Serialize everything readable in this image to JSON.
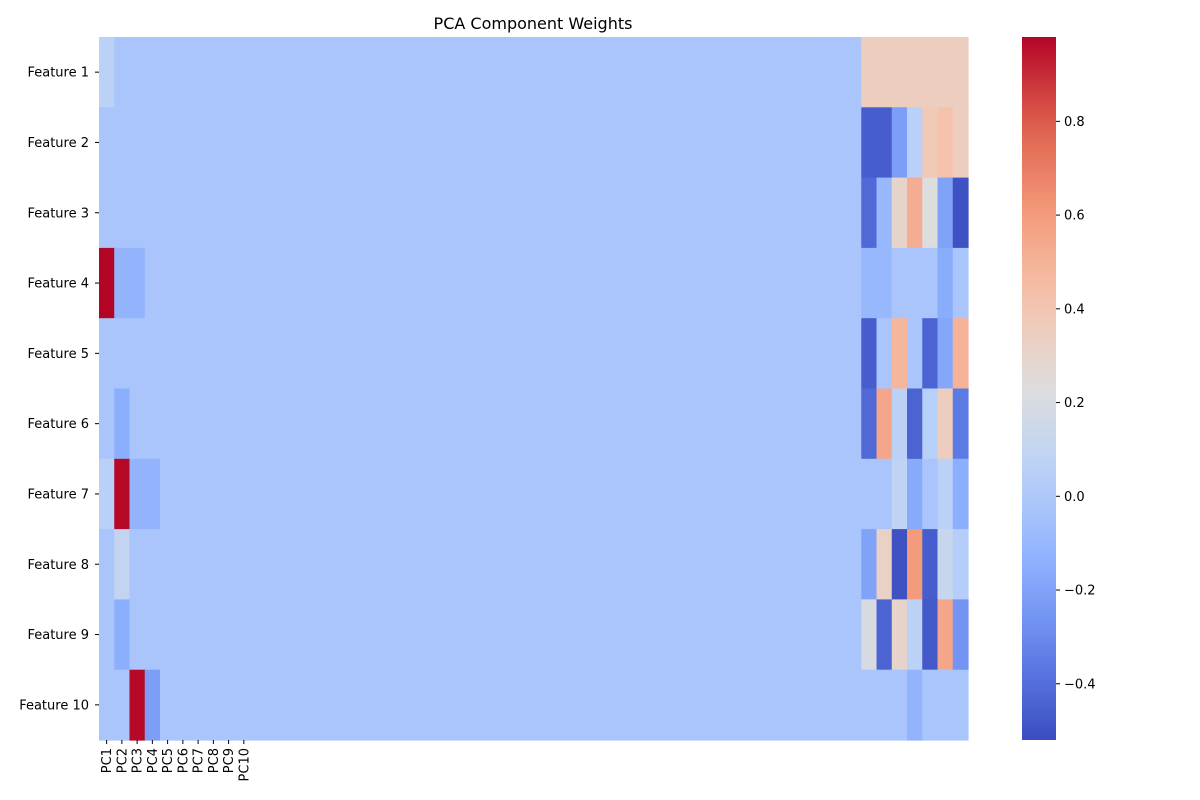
{
  "chart_data": {
    "type": "heatmap",
    "title": "PCA Component Weights",
    "colormap": "coolwarm",
    "rows": [
      "Feature 1",
      "Feature 2",
      "Feature 3",
      "Feature 4",
      "Feature 5",
      "Feature 6",
      "Feature 7",
      "Feature 8",
      "Feature 9",
      "Feature 10"
    ],
    "x_tick_labels": [
      "PC1",
      "PC2",
      "PC3",
      "PC4",
      "PC5",
      "PC6",
      "PC7",
      "PC8",
      "PC9",
      "PC10"
    ],
    "colorbar": {
      "vmin": -0.52,
      "vmax": 0.98,
      "ticks": [
        -0.4,
        -0.2,
        0.0,
        0.2,
        0.4,
        0.6,
        0.8
      ]
    },
    "column_count": 57,
    "background_value": -0.02,
    "cells": [
      {
        "row": 0,
        "cols": [
          0
        ],
        "value": 0.06
      },
      {
        "row": 0,
        "cols": [
          50,
          51,
          52,
          53,
          54,
          55,
          56
        ],
        "value": 0.35
      },
      {
        "row": 1,
        "cols": [
          50,
          51
        ],
        "value": -0.46
      },
      {
        "row": 1,
        "cols": [
          52
        ],
        "value": -0.22
      },
      {
        "row": 1,
        "cols": [
          53
        ],
        "value": 0.05
      },
      {
        "row": 1,
        "cols": [
          54
        ],
        "value": 0.38
      },
      {
        "row": 1,
        "cols": [
          55
        ],
        "value": 0.42
      },
      {
        "row": 1,
        "cols": [
          56
        ],
        "value": 0.35
      },
      {
        "row": 2,
        "cols": [
          50
        ],
        "value": -0.42
      },
      {
        "row": 2,
        "cols": [
          51
        ],
        "value": -0.1
      },
      {
        "row": 2,
        "cols": [
          52
        ],
        "value": 0.3
      },
      {
        "row": 2,
        "cols": [
          53
        ],
        "value": 0.52
      },
      {
        "row": 2,
        "cols": [
          54
        ],
        "value": 0.23
      },
      {
        "row": 2,
        "cols": [
          55
        ],
        "value": -0.2
      },
      {
        "row": 2,
        "cols": [
          56
        ],
        "value": -0.5
      },
      {
        "row": 3,
        "cols": [
          0
        ],
        "value": 0.98
      },
      {
        "row": 3,
        "cols": [
          1,
          2
        ],
        "value": -0.12
      },
      {
        "row": 3,
        "cols": [
          50,
          51
        ],
        "value": -0.1
      },
      {
        "row": 3,
        "cols": [
          55
        ],
        "value": -0.16
      },
      {
        "row": 4,
        "cols": [
          50
        ],
        "value": -0.46
      },
      {
        "row": 4,
        "cols": [
          52
        ],
        "value": 0.48
      },
      {
        "row": 4,
        "cols": [
          54
        ],
        "value": -0.44
      },
      {
        "row": 4,
        "cols": [
          55
        ],
        "value": -0.18
      },
      {
        "row": 4,
        "cols": [
          56
        ],
        "value": 0.5
      },
      {
        "row": 5,
        "cols": [
          1
        ],
        "value": -0.15
      },
      {
        "row": 5,
        "cols": [
          50
        ],
        "value": -0.42
      },
      {
        "row": 5,
        "cols": [
          51
        ],
        "value": 0.55
      },
      {
        "row": 5,
        "cols": [
          52
        ],
        "value": 0.06
      },
      {
        "row": 5,
        "cols": [
          53
        ],
        "value": -0.44
      },
      {
        "row": 5,
        "cols": [
          54
        ],
        "value": 0.04
      },
      {
        "row": 5,
        "cols": [
          55
        ],
        "value": 0.35
      },
      {
        "row": 5,
        "cols": [
          56
        ],
        "value": -0.36
      },
      {
        "row": 6,
        "cols": [
          0
        ],
        "value": 0.05
      },
      {
        "row": 6,
        "cols": [
          1
        ],
        "value": 0.97
      },
      {
        "row": 6,
        "cols": [
          2,
          3
        ],
        "value": -0.12
      },
      {
        "row": 6,
        "cols": [
          52
        ],
        "value": 0.08
      },
      {
        "row": 6,
        "cols": [
          53
        ],
        "value": -0.17
      },
      {
        "row": 6,
        "cols": [
          55
        ],
        "value": 0.06
      },
      {
        "row": 6,
        "cols": [
          56
        ],
        "value": -0.15
      },
      {
        "row": 7,
        "cols": [
          1
        ],
        "value": 0.1
      },
      {
        "row": 7,
        "cols": [
          50
        ],
        "value": -0.2
      },
      {
        "row": 7,
        "cols": [
          51
        ],
        "value": 0.32
      },
      {
        "row": 7,
        "cols": [
          52
        ],
        "value": -0.5
      },
      {
        "row": 7,
        "cols": [
          53
        ],
        "value": 0.6
      },
      {
        "row": 7,
        "cols": [
          54
        ],
        "value": -0.46
      },
      {
        "row": 7,
        "cols": [
          55
        ],
        "value": 0.12
      },
      {
        "row": 7,
        "cols": [
          56
        ],
        "value": 0.03
      },
      {
        "row": 8,
        "cols": [
          1
        ],
        "value": -0.15
      },
      {
        "row": 8,
        "cols": [
          50
        ],
        "value": 0.2
      },
      {
        "row": 8,
        "cols": [
          51
        ],
        "value": -0.44
      },
      {
        "row": 8,
        "cols": [
          52
        ],
        "value": 0.3
      },
      {
        "row": 8,
        "cols": [
          53
        ],
        "value": 0.06
      },
      {
        "row": 8,
        "cols": [
          54
        ],
        "value": -0.48
      },
      {
        "row": 8,
        "cols": [
          55
        ],
        "value": 0.55
      },
      {
        "row": 8,
        "cols": [
          56
        ],
        "value": -0.26
      },
      {
        "row": 9,
        "cols": [
          2
        ],
        "value": 0.97
      },
      {
        "row": 9,
        "cols": [
          3
        ],
        "value": -0.22
      },
      {
        "row": 9,
        "cols": [
          53
        ],
        "value": -0.12
      }
    ]
  }
}
